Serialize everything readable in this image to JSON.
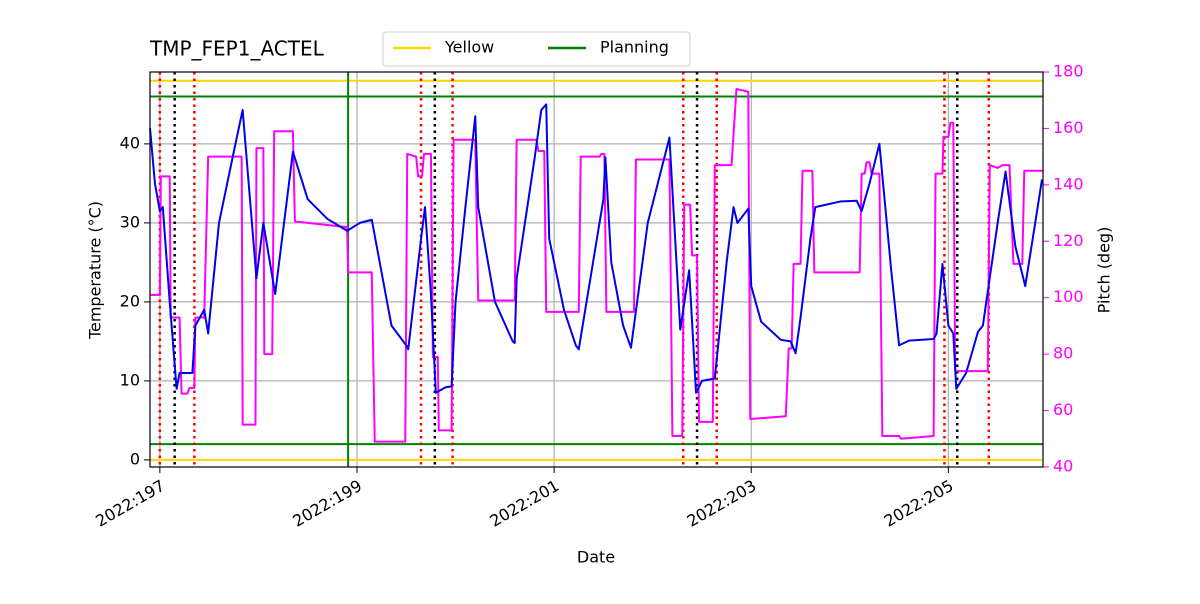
{
  "chart_data": {
    "type": "line",
    "title": "TMP_FEP1_ACTEL",
    "xlabel": "Date",
    "ylabel": "Temperature (°C)",
    "y2label": "Pitch (deg)",
    "xlim": [
      196.9,
      205.96
    ],
    "xticks": [
      {
        "value": 197,
        "label": "2022:197"
      },
      {
        "value": 199,
        "label": "2022:199"
      },
      {
        "value": 201,
        "label": "2022:201"
      },
      {
        "value": 203,
        "label": "2022:203"
      },
      {
        "value": 205,
        "label": "2022:205"
      }
    ],
    "ylim": [
      -0.9,
      49.1
    ],
    "yticks": [
      0,
      10,
      20,
      30,
      40
    ],
    "y2lim": [
      40,
      180
    ],
    "y2ticks": [
      40,
      60,
      80,
      100,
      120,
      140,
      160,
      180
    ],
    "y2color": "#ff00ff",
    "grid": true,
    "limit_lines": [
      {
        "name": "Yellow",
        "color": "#ffd700",
        "values": [
          0,
          48
        ]
      },
      {
        "name": "Planning",
        "color": "#008000",
        "values": [
          2,
          46
        ],
        "x": [
          198.91
        ]
      }
    ],
    "event_lines": [
      {
        "color": "#ff0000",
        "x": [
          197.0,
          197.35,
          199.65,
          199.97,
          202.31,
          202.65,
          204.96,
          205.41
        ]
      },
      {
        "color": "#000000",
        "x": [
          197.15,
          199.79,
          202.45,
          205.09
        ]
      }
    ],
    "series": [
      {
        "color": "#0000ee",
        "axis": "y",
        "x": [
          196.9,
          196.95,
          197.0,
          197.03,
          197.1,
          197.17,
          197.2,
          197.33,
          197.36,
          197.45,
          197.49,
          197.6,
          197.75,
          197.84,
          197.98,
          198.05,
          198.17,
          198.35,
          198.5,
          198.7,
          198.9,
          199.03,
          199.15,
          199.35,
          199.5,
          199.52,
          199.65,
          199.69,
          199.75,
          199.8,
          199.9,
          199.96,
          200.0,
          200.1,
          200.2,
          200.23,
          200.4,
          200.58,
          200.6,
          200.62,
          200.8,
          200.87,
          200.92,
          200.95,
          201.1,
          201.22,
          201.25,
          201.5,
          201.52,
          201.58,
          201.7,
          201.78,
          201.95,
          202.17,
          202.28,
          202.37,
          202.44,
          202.5,
          202.63,
          202.75,
          202.82,
          202.86,
          202.97,
          203.0,
          203.1,
          203.3,
          203.4,
          203.45,
          203.5,
          203.6,
          203.65,
          203.9,
          204.07,
          204.12,
          204.2,
          204.3,
          204.42,
          204.5,
          204.6,
          204.85,
          204.88,
          204.94,
          205.0,
          205.05,
          205.08,
          205.18,
          205.3,
          205.35,
          205.5,
          205.58,
          205.68,
          205.78,
          205.95
        ],
        "values": [
          42,
          35,
          31.5,
          32,
          20,
          9,
          11,
          11,
          17,
          19,
          16,
          30,
          39,
          44.3,
          23,
          30,
          21,
          39,
          33,
          30.5,
          29,
          30,
          30.4,
          17,
          14.5,
          14,
          28,
          32,
          21,
          8.5,
          9.2,
          9.3,
          20,
          32,
          43.5,
          32,
          20,
          15,
          14.8,
          23,
          38,
          44.3,
          45,
          28,
          19,
          14.5,
          14,
          33,
          38.3,
          25,
          17,
          14.2,
          30,
          40.8,
          16.5,
          24,
          8.5,
          10,
          10.3,
          25,
          32,
          30,
          31.8,
          22,
          17.5,
          15.2,
          15,
          13.5,
          18,
          28,
          32,
          32.7,
          32.8,
          31.5,
          35,
          40,
          24,
          14.5,
          15.1,
          15.3,
          16,
          24.8,
          17,
          16,
          9,
          11,
          16.2,
          17,
          30,
          36.5,
          27,
          22,
          35.5
        ]
      },
      {
        "color": "#ff00ff",
        "axis": "y2",
        "x": [
          196.9,
          197.0,
          197.01,
          197.1,
          197.11,
          197.2,
          197.22,
          197.28,
          197.3,
          197.35,
          197.36,
          197.45,
          197.49,
          197.83,
          197.84,
          197.97,
          197.98,
          198.05,
          198.06,
          198.14,
          198.16,
          198.35,
          198.37,
          198.9,
          198.91,
          199.15,
          199.18,
          199.49,
          199.51,
          199.6,
          199.62,
          199.66,
          199.68,
          199.75,
          199.77,
          199.82,
          199.83,
          199.96,
          199.98,
          200.2,
          200.23,
          200.6,
          200.62,
          200.82,
          200.84,
          200.9,
          200.92,
          201.25,
          201.27,
          201.46,
          201.48,
          201.51,
          201.53,
          201.81,
          201.83,
          202.17,
          202.2,
          202.3,
          202.32,
          202.38,
          202.4,
          202.45,
          202.47,
          202.61,
          202.63,
          202.8,
          202.85,
          202.97,
          202.99,
          203.35,
          203.38,
          203.41,
          203.43,
          203.5,
          203.52,
          203.62,
          203.64,
          204.1,
          204.12,
          204.15,
          204.17,
          204.2,
          204.22,
          204.3,
          204.33,
          204.5,
          204.52,
          204.85,
          204.87,
          204.94,
          204.95,
          205.0,
          205.02,
          205.05,
          205.07,
          205.4,
          205.42,
          205.5,
          205.55,
          205.62,
          205.66,
          205.75,
          205.77,
          205.96
        ],
        "values": [
          101,
          101,
          143,
          143,
          93,
          93,
          66,
          66,
          68,
          68,
          93,
          93,
          150,
          150,
          55,
          55,
          153,
          153,
          80,
          80,
          159,
          159,
          127,
          125,
          109,
          109,
          49,
          49,
          151,
          150,
          143,
          143,
          151,
          151,
          79,
          79,
          53,
          53,
          156,
          156,
          99,
          99,
          156,
          156,
          152,
          152,
          95,
          95,
          150,
          150,
          151,
          151,
          95,
          95,
          149,
          149,
          51,
          51,
          133,
          133,
          115,
          115,
          56,
          56,
          147,
          147,
          174,
          173,
          57,
          58,
          82,
          82,
          112,
          112,
          145,
          145,
          109,
          109,
          144,
          144,
          148,
          148,
          144,
          144,
          51,
          51,
          50,
          51,
          144,
          144,
          157,
          157,
          162,
          162,
          74,
          74,
          147,
          146,
          147,
          147,
          112,
          112,
          145,
          145
        ]
      }
    ]
  }
}
